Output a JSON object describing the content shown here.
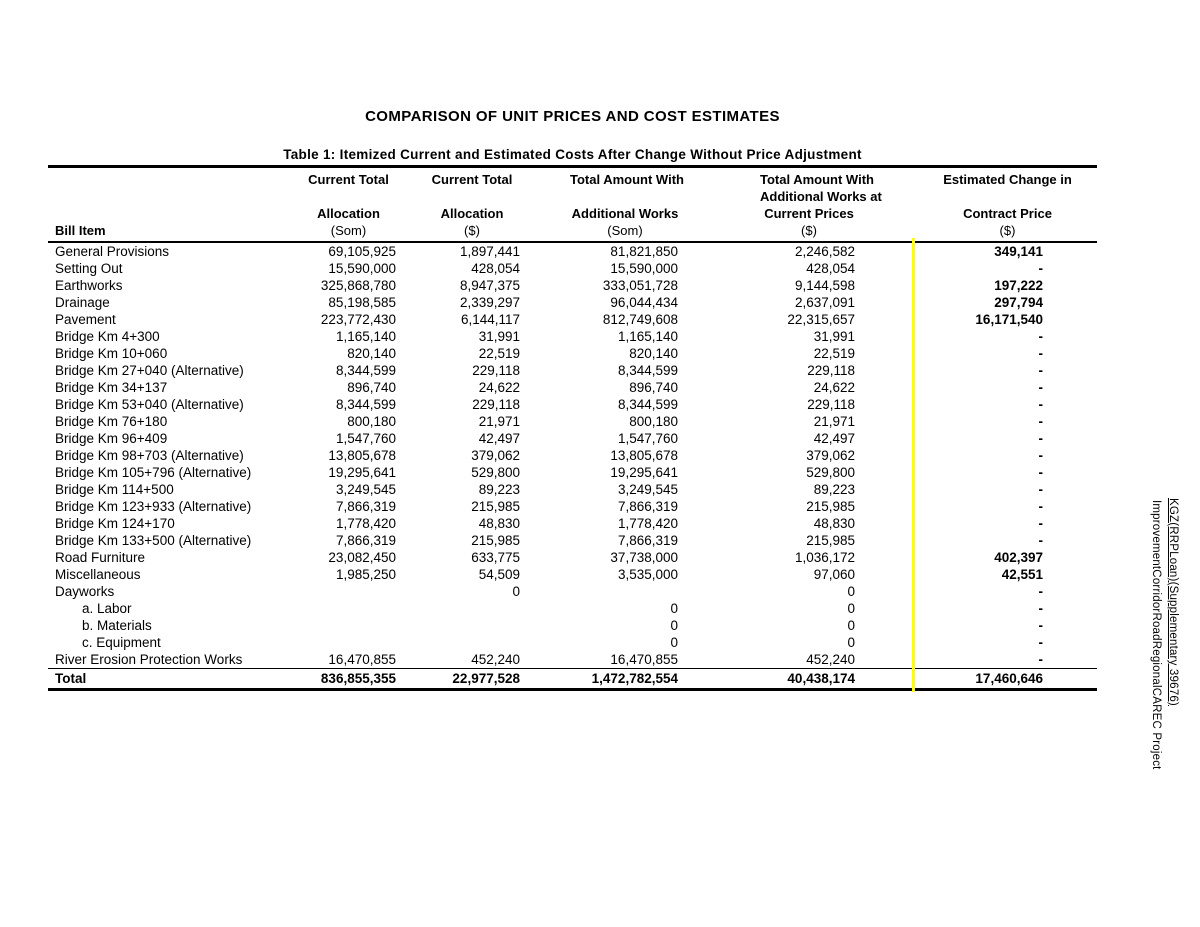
{
  "document": {
    "title": "COMPARISON OF UNIT PRICES AND COST ESTIMATES",
    "caption": "Table 1: Itemized Current and Estimated Costs After Change Without Price Adjustment"
  },
  "side_note": {
    "line1": "ImprovementCorridorRoadRegionalCAREC Project",
    "line2": "KGZ(RRPLoan)(Supplementary 39676)"
  },
  "table": {
    "bill_item_header": "Bill Item",
    "highlight_color": "#ffff00",
    "columns": [
      {
        "key": "current-total-allocation-som",
        "lines": [
          "Current Total",
          "Allocation"
        ],
        "unit": "(Som)"
      },
      {
        "key": "current-total-allocation-usd",
        "lines": [
          "Current Total",
          "Allocation"
        ],
        "unit": "($)"
      },
      {
        "key": "additional-works-som",
        "lines": [
          "Total Amount With",
          "Additional Works"
        ],
        "unit": "(Som)"
      },
      {
        "key": "additional-works-current-prices-usd",
        "lines": [
          "Total Amount With",
          "Additional Works at",
          "Current Prices"
        ],
        "unit": "($)"
      },
      {
        "key": "estimated-change-contract-price",
        "lines": [
          "Estimated Change in",
          "Contract Price"
        ],
        "unit": "($)"
      }
    ],
    "rows": [
      {
        "label": "General Provisions",
        "indent": false,
        "c1": "69,105,925",
        "c2": "1,897,441",
        "c3": "81,821,850",
        "c4": "2,246,582",
        "c5": "349,141"
      },
      {
        "label": "Setting Out",
        "indent": false,
        "c1": "15,590,000",
        "c2": "428,054",
        "c3": "15,590,000",
        "c4": "428,054",
        "c5": "-"
      },
      {
        "label": "Earthworks",
        "indent": false,
        "c1": "325,868,780",
        "c2": "8,947,375",
        "c3": "333,051,728",
        "c4": "9,144,598",
        "c5": "197,222"
      },
      {
        "label": "Drainage",
        "indent": false,
        "c1": "85,198,585",
        "c2": "2,339,297",
        "c3": "96,044,434",
        "c4": "2,637,091",
        "c5": "297,794"
      },
      {
        "label": "Pavement",
        "indent": false,
        "c1": "223,772,430",
        "c2": "6,144,117",
        "c3": "812,749,608",
        "c4": "22,315,657",
        "c5": "16,171,540"
      },
      {
        "label": "Bridge Km 4+300",
        "indent": false,
        "c1": "1,165,140",
        "c2": "31,991",
        "c3": "1,165,140",
        "c4": "31,991",
        "c5": "-"
      },
      {
        "label": "Bridge Km 10+060",
        "indent": false,
        "c1": "820,140",
        "c2": "22,519",
        "c3": "820,140",
        "c4": "22,519",
        "c5": "-"
      },
      {
        "label": "Bridge Km 27+040 (Alternative)",
        "indent": false,
        "c1": "8,344,599",
        "c2": "229,118",
        "c3": "8,344,599",
        "c4": "229,118",
        "c5": "-"
      },
      {
        "label": "Bridge Km 34+137",
        "indent": false,
        "c1": "896,740",
        "c2": "24,622",
        "c3": "896,740",
        "c4": "24,622",
        "c5": "-"
      },
      {
        "label": "Bridge Km 53+040 (Alternative)",
        "indent": false,
        "c1": "8,344,599",
        "c2": "229,118",
        "c3": "8,344,599",
        "c4": "229,118",
        "c5": "-"
      },
      {
        "label": "Bridge Km 76+180",
        "indent": false,
        "c1": "800,180",
        "c2": "21,971",
        "c3": "800,180",
        "c4": "21,971",
        "c5": "-"
      },
      {
        "label": "Bridge Km 96+409",
        "indent": false,
        "c1": "1,547,760",
        "c2": "42,497",
        "c3": "1,547,760",
        "c4": "42,497",
        "c5": "-"
      },
      {
        "label": "Bridge Km 98+703 (Alternative)",
        "indent": false,
        "c1": "13,805,678",
        "c2": "379,062",
        "c3": "13,805,678",
        "c4": "379,062",
        "c5": "-"
      },
      {
        "label": "Bridge Km 105+796 (Alternative)",
        "indent": false,
        "c1": "19,295,641",
        "c2": "529,800",
        "c3": "19,295,641",
        "c4": "529,800",
        "c5": "-"
      },
      {
        "label": "Bridge Km 114+500",
        "indent": false,
        "c1": "3,249,545",
        "c2": "89,223",
        "c3": "3,249,545",
        "c4": "89,223",
        "c5": "-"
      },
      {
        "label": "Bridge Km 123+933 (Alternative)",
        "indent": false,
        "c1": "7,866,319",
        "c2": "215,985",
        "c3": "7,866,319",
        "c4": "215,985",
        "c5": "-"
      },
      {
        "label": "Bridge Km 124+170",
        "indent": false,
        "c1": "1,778,420",
        "c2": "48,830",
        "c3": "1,778,420",
        "c4": "48,830",
        "c5": "-"
      },
      {
        "label": "Bridge Km 133+500 (Alternative)",
        "indent": false,
        "c1": "7,866,319",
        "c2": "215,985",
        "c3": "7,866,319",
        "c4": "215,985",
        "c5": "-"
      },
      {
        "label": "Road Furniture",
        "indent": false,
        "c1": "23,082,450",
        "c2": "633,775",
        "c3": "37,738,000",
        "c4": "1,036,172",
        "c5": "402,397"
      },
      {
        "label": "Miscellaneous",
        "indent": false,
        "c1": "1,985,250",
        "c2": "54,509",
        "c3": "3,535,000",
        "c4": "97,060",
        "c5": "42,551"
      },
      {
        "label": "Dayworks",
        "indent": false,
        "c1": "",
        "c2": "0",
        "c3": "",
        "c4": "0",
        "c5": "-"
      },
      {
        "label": "a. Labor",
        "indent": true,
        "c1": "",
        "c2": "",
        "c3": "0",
        "c4": "0",
        "c5": "-"
      },
      {
        "label": "b. Materials",
        "indent": true,
        "c1": "",
        "c2": "",
        "c3": "0",
        "c4": "0",
        "c5": "-"
      },
      {
        "label": "c. Equipment",
        "indent": true,
        "c1": "",
        "c2": "",
        "c3": "0",
        "c4": "0",
        "c5": "-"
      },
      {
        "label": "River Erosion Protection Works",
        "indent": false,
        "c1": "16,470,855",
        "c2": "452,240",
        "c3": "16,470,855",
        "c4": "452,240",
        "c5": "-"
      }
    ],
    "total": {
      "label": "Total",
      "indent": false,
      "c1": "836,855,355",
      "c2": "22,977,528",
      "c3": "1,472,782,554",
      "c4": "40,438,174",
      "c5": "17,460,646"
    }
  }
}
